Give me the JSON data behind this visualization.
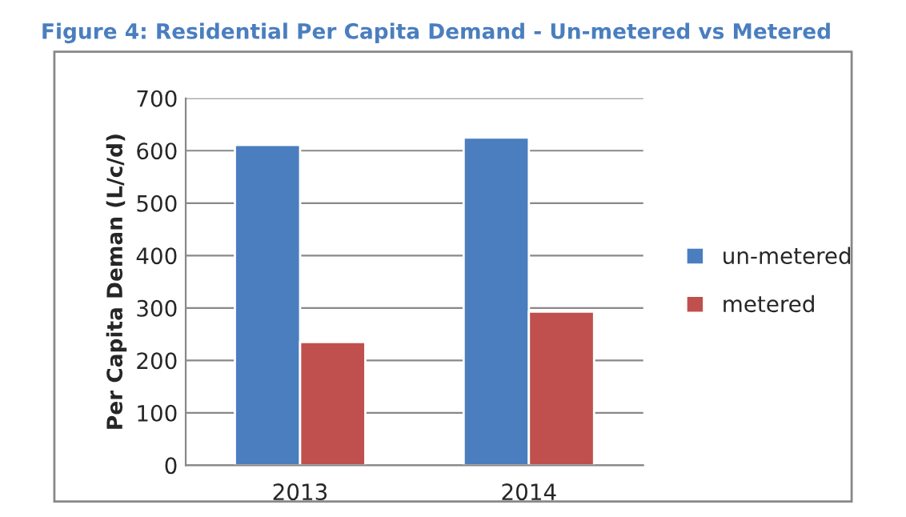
{
  "chart_data": {
    "type": "bar",
    "title": "Figure 4: Residential Per Capita Demand - Un-metered vs Metered",
    "ylabel": "Per Capita Deman (L/c/d)",
    "categories": [
      "2013",
      "2014"
    ],
    "series": [
      {
        "name": "un-metered",
        "color": "#4a7ebf",
        "values": [
          611,
          625
        ]
      },
      {
        "name": "metered",
        "color": "#c0504d",
        "values": [
          235,
          293
        ]
      }
    ],
    "ylim": [
      0,
      700
    ],
    "yticks": [
      0,
      100,
      200,
      300,
      400,
      500,
      600,
      700
    ],
    "grid": "y",
    "legend": "right"
  }
}
